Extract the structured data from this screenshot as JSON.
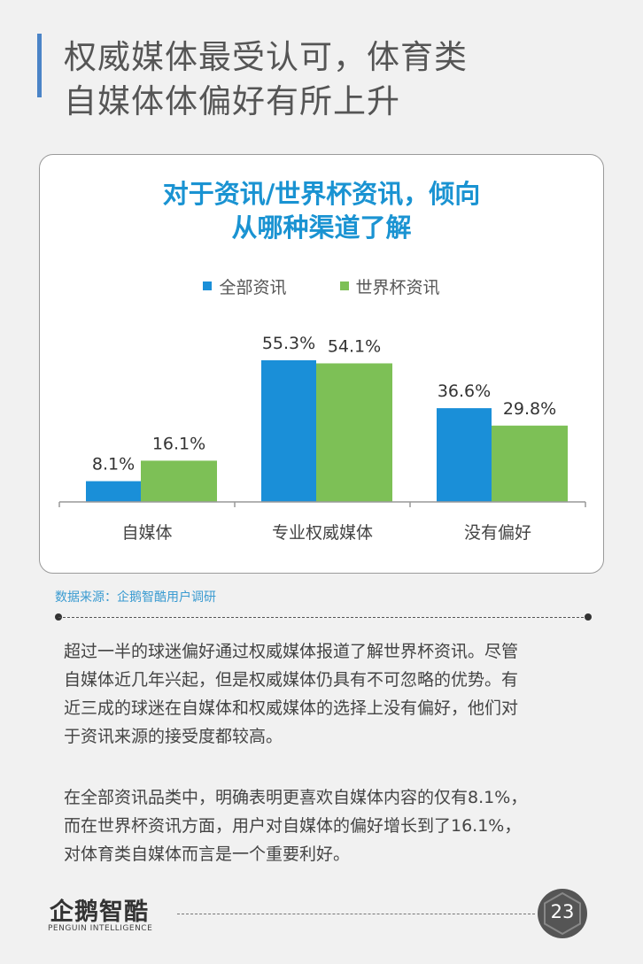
{
  "header": {
    "title_line1": "权威媒体最受认可，体育类",
    "title_line2": "自媒体体偏好有所上升"
  },
  "chart_data": {
    "type": "bar",
    "title_line1": "对于资讯/世界杯资讯，倾向",
    "title_line2": "从哪种渠道了解",
    "categories": [
      "自媒体",
      "专业权威媒体",
      "没有偏好"
    ],
    "series": [
      {
        "name": "全部资讯",
        "color": "#1a8fd8",
        "values": [
          8.1,
          55.3,
          36.6
        ],
        "labels": [
          "8.1%",
          "55.3%",
          "36.6%"
        ]
      },
      {
        "name": "世界杯资讯",
        "color": "#7dc056",
        "values": [
          16.1,
          54.1,
          29.8
        ],
        "labels": [
          "16.1%",
          "54.1%",
          "29.8%"
        ]
      }
    ],
    "ylim": [
      0,
      60
    ],
    "legend": "top-center",
    "grid": false
  },
  "source": "数据来源：企鹅智酷用户调研",
  "paragraphs": {
    "p1_l1": "超过一半的球迷偏好通过权威媒体报道了解世界杯资讯。尽管",
    "p1_l2": "自媒体近几年兴起，但是权威媒体仍具有不可忽略的优势。有",
    "p1_l3": "近三成的球迷在自媒体和权威媒体的选择上没有偏好，他们对",
    "p1_l4": "于资讯来源的接受度都较高。",
    "p2_l1": "在全部资讯品类中，明确表明更喜欢自媒体内容的仅有8.1%，",
    "p2_l2": "而在世界杯资讯方面，用户对自媒体的偏好增长到了16.1%，",
    "p2_l3": "对体育类自媒体而言是一个重要利好。"
  },
  "footer": {
    "logo_text": "企鹅智酷",
    "logo_sub": "PENGUIN INTELLIGENCE",
    "page_number": "23"
  }
}
